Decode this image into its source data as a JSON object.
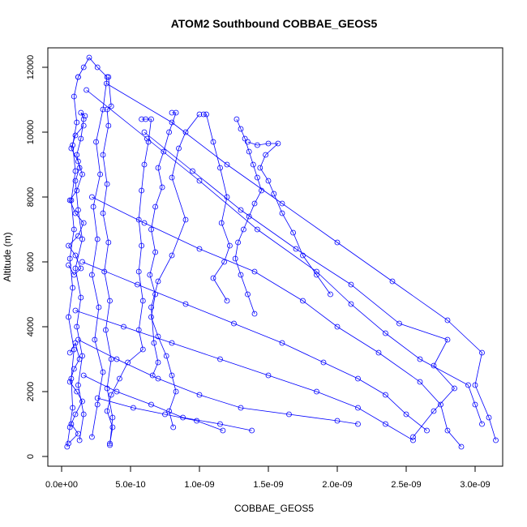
{
  "chart_data": {
    "type": "scatter",
    "title": "ATOM2 Southbound COBBAE_GEOS5",
    "xlabel": "COBBAE_GEOS5",
    "ylabel": "Altitude (m)",
    "xlim": [
      -1e-10,
      3.2e-09
    ],
    "ylim": [
      -300,
      12600
    ],
    "x_ticks": [
      0,
      5e-10,
      1e-09,
      1.5e-09,
      2e-09,
      2.5e-09,
      3e-09
    ],
    "x_tick_labels": [
      "0.0e+00",
      "5.0e-10",
      "1.0e-09",
      "1.5e-09",
      "2.0e-09",
      "2.5e-09",
      "3.0e-09"
    ],
    "y_ticks": [
      0,
      2000,
      4000,
      6000,
      8000,
      10000,
      12000
    ],
    "y_tick_labels": [
      "0",
      "2000",
      "4000",
      "6000",
      "8000",
      "10000",
      "12000"
    ],
    "grid": false,
    "legend": "none",
    "series": [
      {
        "points": [
          [
            4e-11,
            300
          ],
          [
            6e-11,
            900
          ],
          [
            8e-11,
            1500
          ],
          [
            7e-11,
            2400
          ],
          [
            9e-11,
            3300
          ],
          [
            5e-11,
            4300
          ],
          [
            8e-11,
            5200
          ],
          [
            6e-11,
            6100
          ],
          [
            9e-11,
            7000
          ],
          [
            7e-11,
            7900
          ],
          [
            1e-10,
            8800
          ],
          [
            8e-11,
            9600
          ],
          [
            1.1e-10,
            10300
          ],
          [
            9e-11,
            11100
          ],
          [
            1.2e-10,
            11700
          ]
        ]
      },
      {
        "points": [
          [
            1.2e-10,
            11700
          ],
          [
            1.6e-10,
            12000
          ],
          [
            2e-10,
            12300
          ],
          [
            2.6e-10,
            12000
          ],
          [
            3.3e-10,
            11700
          ],
          [
            3e-10,
            10700
          ],
          [
            2.5e-10,
            9700
          ],
          [
            2.8e-10,
            8700
          ],
          [
            2.3e-10,
            7700
          ],
          [
            2.6e-10,
            6700
          ],
          [
            2.2e-10,
            5600
          ],
          [
            2.7e-10,
            4600
          ],
          [
            2.4e-10,
            3600
          ],
          [
            3e-10,
            2600
          ],
          [
            2.6e-10,
            1600
          ],
          [
            2.2e-10,
            600
          ]
        ]
      },
      {
        "points": [
          [
            1.3e-10,
            500
          ],
          [
            1.6e-10,
            1300
          ],
          [
            1.2e-10,
            2200
          ],
          [
            1.5e-10,
            3100
          ],
          [
            1.1e-10,
            4000
          ],
          [
            1.4e-10,
            4900
          ],
          [
            1e-10,
            5800
          ],
          [
            1.5e-10,
            6700
          ],
          [
            1.2e-10,
            7600
          ],
          [
            1e-10,
            8500
          ],
          [
            1.3e-10,
            8900
          ],
          [
            1.1e-10,
            9300
          ],
          [
            1.4e-10,
            9800
          ],
          [
            1.6e-10,
            10400
          ],
          [
            1.4e-10,
            10600
          ],
          [
            1.7e-10,
            10500
          ]
        ]
      },
      {
        "points": [
          [
            3.5e-10,
            350
          ],
          [
            3.7e-10,
            1200
          ],
          [
            3.3e-10,
            2100
          ],
          [
            3.6e-10,
            3000
          ],
          [
            3.2e-10,
            3900
          ],
          [
            3.5e-10,
            4800
          ],
          [
            3.1e-10,
            5700
          ],
          [
            3.4e-10,
            6600
          ],
          [
            3e-10,
            7500
          ],
          [
            3.3e-10,
            8400
          ],
          [
            3e-10,
            9300
          ],
          [
            3.4e-10,
            10200
          ],
          [
            3.3e-10,
            10700
          ],
          [
            3.6e-10,
            10800
          ],
          [
            3.4e-10,
            11700
          ]
        ]
      },
      {
        "points": [
          [
            5.8e-10,
            10400
          ],
          [
            6.1e-10,
            10400
          ],
          [
            6.5e-10,
            10400
          ],
          [
            6.3e-10,
            9700
          ],
          [
            6e-10,
            9000
          ],
          [
            5.8e-10,
            8200
          ],
          [
            5.6e-10,
            7300
          ],
          [
            5.8e-10,
            6500
          ],
          [
            5.6e-10,
            5700
          ],
          [
            5.9e-10,
            4800
          ],
          [
            5.6e-10,
            3900
          ],
          [
            5.9e-10,
            3300
          ],
          [
            4.8e-10,
            2900
          ],
          [
            4.2e-10,
            2400
          ],
          [
            3.6e-10,
            1900
          ],
          [
            3.3e-10,
            1400
          ],
          [
            3.7e-10,
            900
          ],
          [
            3.5e-10,
            400
          ]
        ]
      },
      {
        "points": [
          [
            8e-10,
            10600
          ],
          [
            8.3e-10,
            10600
          ],
          [
            7.8e-10,
            10000
          ],
          [
            7.4e-10,
            9400
          ],
          [
            7e-10,
            8900
          ],
          [
            7.3e-10,
            8300
          ],
          [
            6.8e-10,
            7700
          ],
          [
            6.5e-10,
            7000
          ],
          [
            6.8e-10,
            6300
          ],
          [
            6.4e-10,
            5600
          ],
          [
            6.8e-10,
            5000
          ],
          [
            6.5e-10,
            4300
          ],
          [
            7e-10,
            3700
          ],
          [
            7.6e-10,
            3100
          ],
          [
            8e-10,
            2500
          ],
          [
            8.3e-10,
            2000
          ],
          [
            7.8e-10,
            1400
          ],
          [
            8.1e-10,
            900
          ]
        ]
      },
      {
        "points": [
          [
            1.03e-09,
            10550
          ],
          [
            1.05e-09,
            10550
          ],
          [
            1.1e-09,
            9700
          ],
          [
            1.15e-09,
            8900
          ],
          [
            1.2e-09,
            8000
          ],
          [
            1.16e-09,
            7200
          ],
          [
            1.22e-09,
            6500
          ],
          [
            1.18e-09,
            6000
          ],
          [
            1.1e-09,
            5500
          ],
          [
            1.2e-09,
            4800
          ]
        ]
      },
      {
        "points": [
          [
            1.27e-09,
            10400
          ],
          [
            1.3e-09,
            10100
          ],
          [
            1.33e-09,
            9800
          ],
          [
            1.36e-09,
            9400
          ],
          [
            1.39e-09,
            9000
          ],
          [
            1.42e-09,
            8600
          ],
          [
            1.45e-09,
            8200
          ],
          [
            1.4e-09,
            7800
          ],
          [
            1.36e-09,
            7400
          ],
          [
            1.32e-09,
            7000
          ],
          [
            1.28e-09,
            6600
          ],
          [
            1.26e-09,
            6100
          ],
          [
            1.3e-09,
            5600
          ],
          [
            1.35e-09,
            5000
          ],
          [
            1.4e-09,
            4400
          ]
        ]
      },
      {
        "points": [
          [
            1.35e-09,
            9700
          ],
          [
            1.42e-09,
            9600
          ],
          [
            1.5e-09,
            9650
          ],
          [
            1.57e-09,
            9650
          ],
          [
            1.48e-09,
            9300
          ],
          [
            1.44e-09,
            8900
          ],
          [
            1.5e-09,
            8500
          ],
          [
            1.54e-09,
            8100
          ],
          [
            1.6e-09,
            7500
          ],
          [
            1.68e-09,
            6900
          ],
          [
            1.75e-09,
            6200
          ],
          [
            1.85e-09,
            5600
          ],
          [
            1.95e-09,
            5000
          ]
        ]
      },
      {
        "points": [
          [
            3.25e-10,
            11500
          ],
          [
            8e-10,
            10300
          ],
          [
            1.2e-09,
            9000
          ],
          [
            1.6e-09,
            7800
          ],
          [
            2e-09,
            6600
          ],
          [
            2.4e-09,
            5400
          ],
          [
            2.8e-09,
            4200
          ],
          [
            3.05e-09,
            3200
          ],
          [
            3e-09,
            2200
          ],
          [
            3.1e-09,
            1200
          ],
          [
            3.15e-09,
            500
          ]
        ]
      },
      {
        "points": [
          [
            6e-10,
            10000
          ],
          [
            9.5e-10,
            8800
          ],
          [
            1.3e-09,
            7600
          ],
          [
            1.7e-09,
            6400
          ],
          [
            2.1e-09,
            5300
          ],
          [
            2.45e-09,
            4100
          ],
          [
            2.8e-09,
            3600
          ],
          [
            2.7e-09,
            2800
          ],
          [
            2.85e-09,
            2100
          ],
          [
            2.7e-09,
            1400
          ],
          [
            2.55e-09,
            600
          ]
        ]
      },
      {
        "points": [
          [
            2.2e-10,
            8000
          ],
          [
            6e-10,
            7200
          ],
          [
            1e-09,
            6400
          ],
          [
            1.4e-09,
            5700
          ],
          [
            1.75e-09,
            4800
          ],
          [
            2e-09,
            4000
          ],
          [
            2.3e-09,
            3200
          ],
          [
            2.6e-09,
            2300
          ],
          [
            2.75e-09,
            1600
          ],
          [
            2.8e-09,
            800
          ],
          [
            2.9e-09,
            300
          ]
        ]
      },
      {
        "points": [
          [
            1.5e-10,
            6000
          ],
          [
            5.5e-10,
            5300
          ],
          [
            9e-10,
            4700
          ],
          [
            1.25e-09,
            4100
          ],
          [
            1.6e-09,
            3500
          ],
          [
            1.9e-09,
            2900
          ],
          [
            2.15e-09,
            2400
          ],
          [
            2.35e-09,
            1900
          ],
          [
            2.5e-09,
            1300
          ],
          [
            2.65e-09,
            800
          ]
        ]
      },
      {
        "points": [
          [
            1e-10,
            4500
          ],
          [
            4.5e-10,
            4000
          ],
          [
            8e-10,
            3500
          ],
          [
            1.15e-09,
            3000
          ],
          [
            1.5e-09,
            2500
          ],
          [
            1.85e-09,
            2000
          ],
          [
            2.15e-09,
            1500
          ],
          [
            2.35e-09,
            1000
          ],
          [
            2.55e-09,
            500
          ]
        ]
      },
      {
        "points": [
          [
            1.2e-10,
            3600
          ],
          [
            4e-10,
            3000
          ],
          [
            7e-10,
            2400
          ],
          [
            1e-09,
            1900
          ],
          [
            1.3e-09,
            1500
          ],
          [
            1.65e-09,
            1300
          ],
          [
            2e-09,
            1100
          ],
          [
            2.15e-09,
            1000
          ]
        ]
      },
      {
        "points": [
          [
            1.6e-10,
            2500
          ],
          [
            4e-10,
            2000
          ],
          [
            6.5e-10,
            1600
          ],
          [
            8.8e-10,
            1200
          ],
          [
            1.15e-09,
            1000
          ],
          [
            1.38e-09,
            800
          ]
        ]
      },
      {
        "points": [
          [
            2.6e-10,
            1800
          ],
          [
            5.2e-10,
            1500
          ],
          [
            7.5e-10,
            1300
          ],
          [
            9.8e-10,
            1100
          ],
          [
            1.17e-09,
            800
          ]
        ]
      },
      {
        "points": [
          [
            1.8e-10,
            11300
          ],
          [
            6.2e-10,
            9800
          ],
          [
            1e-09,
            8500
          ],
          [
            1.42e-09,
            7000
          ],
          [
            1.85e-09,
            5700
          ],
          [
            2.1e-09,
            4700
          ],
          [
            2.35e-09,
            3800
          ],
          [
            2.6e-09,
            3000
          ],
          [
            2.95e-09,
            2200
          ],
          [
            3e-09,
            1600
          ],
          [
            3.05e-09,
            1000
          ]
        ]
      },
      {
        "points": [
          [
            1e-09,
            10550
          ],
          [
            9e-10,
            10000
          ],
          [
            8.5e-10,
            9500
          ],
          [
            8e-10,
            8600
          ],
          [
            9e-10,
            7300
          ],
          [
            8e-10,
            6200
          ],
          [
            7e-10,
            5400
          ],
          [
            6.5e-10,
            4600
          ],
          [
            6.7e-10,
            3500
          ],
          [
            7e-10,
            2900
          ],
          [
            6.6e-10,
            2500
          ]
        ]
      },
      {
        "points": [
          [
            5e-11,
            5900
          ],
          [
            9e-11,
            5600
          ],
          [
            1.4e-10,
            5800
          ],
          [
            1e-10,
            6200
          ],
          [
            5e-11,
            6500
          ],
          [
            1.2e-10,
            6800
          ],
          [
            1.6e-10,
            7200
          ],
          [
            1e-10,
            7500
          ],
          [
            6e-11,
            7900
          ],
          [
            1.1e-10,
            8200
          ],
          [
            1.5e-10,
            8700
          ],
          [
            1.2e-10,
            9100
          ],
          [
            7e-11,
            9500
          ],
          [
            1e-10,
            9900
          ],
          [
            1.6e-10,
            10200
          ]
        ]
      },
      {
        "points": [
          [
            6e-11,
            3200
          ],
          [
            1e-10,
            3500
          ],
          [
            1.3e-10,
            3000
          ],
          [
            9e-11,
            2700
          ],
          [
            6e-11,
            2300
          ],
          [
            1.1e-10,
            2000
          ],
          [
            1.5e-10,
            1700
          ],
          [
            1e-10,
            1300
          ],
          [
            7e-11,
            1000
          ],
          [
            1.2e-10,
            700
          ],
          [
            5e-11,
            400
          ]
        ]
      }
    ]
  }
}
